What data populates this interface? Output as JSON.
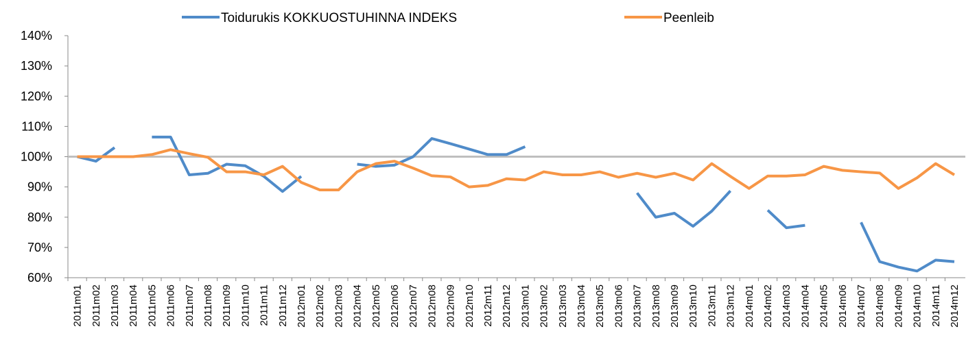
{
  "chart_data": {
    "type": "line",
    "categories": [
      "2011m01",
      "2011m02",
      "2011m03",
      "2011m04",
      "2011m05",
      "2011m06",
      "2011m07",
      "2011m08",
      "2011m09",
      "2011m10",
      "2011m11",
      "2011m12",
      "2012m01",
      "2012m02",
      "2012m03",
      "2012m04",
      "2012m05",
      "2012m06",
      "2012m07",
      "2012m08",
      "2012m09",
      "2012m10",
      "2012m11",
      "2012m12",
      "2013m01",
      "2013m02",
      "2013m03",
      "2013m04",
      "2013m05",
      "2013m06",
      "2013m07",
      "2013m08",
      "2013m09",
      "2013m10",
      "2013m11",
      "2013m12",
      "2014m01",
      "2014m02",
      "2014m03",
      "2014m04",
      "2014m05",
      "2014m06",
      "2014m07",
      "2014m08",
      "2014m09",
      "2014m10",
      "2014m11",
      "2014m12"
    ],
    "series": [
      {
        "name": "Toidurukis KOKKUOSTUHINNA INDEKS",
        "color": "#4f8bc9",
        "values": [
          100,
          98.5,
          103,
          null,
          106.5,
          106.5,
          94,
          94.5,
          97.5,
          97,
          93.5,
          88.5,
          93.5,
          null,
          null,
          97.5,
          96.8,
          97.2,
          100,
          106,
          104.3,
          102.5,
          100.7,
          100.7,
          103.3,
          null,
          null,
          null,
          null,
          null,
          88,
          80,
          81.3,
          77,
          82,
          88.7,
          null,
          82.3,
          76.5,
          77.3,
          null,
          null,
          78.3,
          65.3,
          63.5,
          62.2,
          65.8,
          65.3
        ]
      },
      {
        "name": "Peenleib",
        "color": "#f79646",
        "values": [
          100,
          100,
          100,
          100,
          100.7,
          102.3,
          101,
          99.8,
          95,
          95,
          94,
          96.8,
          91.5,
          89,
          89,
          95,
          97.7,
          98.5,
          96.2,
          93.7,
          93.3,
          90,
          90.5,
          92.7,
          92.3,
          95,
          94,
          94,
          95,
          93.2,
          94.5,
          93.2,
          94.5,
          92.3,
          97.7,
          93.5,
          89.5,
          93.6,
          93.6,
          94,
          96.8,
          95.5,
          95,
          94.6,
          89.5,
          93,
          97.7,
          94
        ]
      }
    ],
    "ylim": [
      60,
      140
    ],
    "yticks": [
      {
        "value": 60,
        "label": "60%"
      },
      {
        "value": 70,
        "label": "70%"
      },
      {
        "value": 80,
        "label": "80%"
      },
      {
        "value": 90,
        "label": "90%"
      },
      {
        "value": 100,
        "label": "100%"
      },
      {
        "value": 110,
        "label": "110%"
      },
      {
        "value": 120,
        "label": "120%"
      },
      {
        "value": 130,
        "label": "130%"
      },
      {
        "value": 140,
        "label": "140%"
      }
    ],
    "reference_line": 100
  }
}
